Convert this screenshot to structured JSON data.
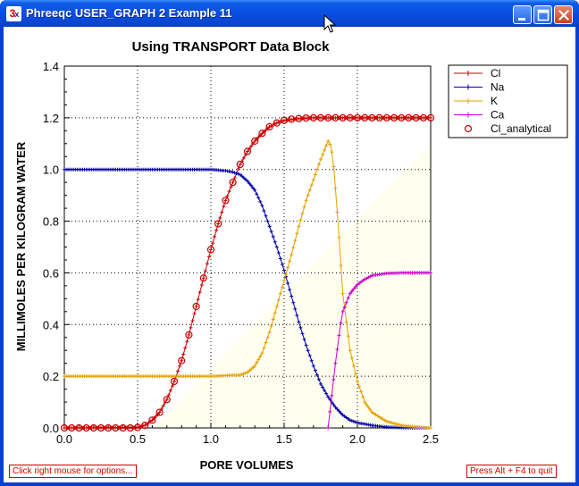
{
  "window": {
    "title": "Phreeqc USER_GRAPH 2 Example 11",
    "icon": "phreeqc-3x-icon",
    "icon_text": "3",
    "icon_suffix": "x",
    "controls": [
      "minimize-icon",
      "maximize-icon",
      "close-icon"
    ]
  },
  "status": {
    "left_hint": "Click right mouse for options...",
    "right_hint": "Press Alt + F4 to quit"
  },
  "colors": {
    "Cl": "#cc0000",
    "Na": "#0000aa",
    "K": "#e6a000",
    "Ca": "#cc00cc",
    "Cl_analytical": "#cc0000",
    "plot_background": "#fffff0"
  },
  "chart_data": {
    "type": "line",
    "title": "Using TRANSPORT Data Block",
    "xlabel": "PORE VOLUMES",
    "ylabel": "MILLIMOLES PER KILOGRAM WATER",
    "xlim": [
      0,
      2.5
    ],
    "ylim": [
      0,
      1.4
    ],
    "x_ticks": [
      "0.0",
      "0.5",
      "1.0",
      "1.5",
      "2.0",
      "2.5"
    ],
    "y_ticks": [
      "0.0",
      "0.2",
      "0.4",
      "0.6",
      "0.8",
      "1.0",
      "1.2",
      "1.4"
    ],
    "grid": true,
    "grid_style": "dotted",
    "legend_position": "right",
    "series": [
      {
        "name": "Cl",
        "style": "line-plus",
        "x": [
          0,
          0.5,
          0.55,
          0.6,
          0.65,
          0.7,
          0.75,
          0.8,
          0.85,
          0.9,
          0.95,
          1.0,
          1.05,
          1.1,
          1.15,
          1.2,
          1.25,
          1.3,
          1.35,
          1.4,
          1.45,
          1.5,
          1.6,
          1.7,
          1.8,
          1.9,
          2.0,
          2.25,
          2.5
        ],
        "values": [
          0,
          0.002,
          0.01,
          0.03,
          0.06,
          0.11,
          0.18,
          0.26,
          0.36,
          0.47,
          0.58,
          0.69,
          0.79,
          0.88,
          0.95,
          1.02,
          1.07,
          1.11,
          1.14,
          1.165,
          1.18,
          1.19,
          1.197,
          1.2,
          1.2,
          1.2,
          1.2,
          1.2,
          1.2
        ]
      },
      {
        "name": "Na",
        "style": "line-plus",
        "x": [
          0,
          0.5,
          1.0,
          1.1,
          1.15,
          1.2,
          1.25,
          1.3,
          1.35,
          1.4,
          1.45,
          1.5,
          1.55,
          1.6,
          1.65,
          1.7,
          1.75,
          1.8,
          1.85,
          1.9,
          1.95,
          2.0,
          2.1,
          2.2,
          2.3,
          2.5
        ],
        "values": [
          1.0,
          1.0,
          1.0,
          0.995,
          0.99,
          0.98,
          0.955,
          0.92,
          0.86,
          0.78,
          0.7,
          0.61,
          0.51,
          0.41,
          0.32,
          0.24,
          0.17,
          0.12,
          0.08,
          0.05,
          0.03,
          0.02,
          0.01,
          0.003,
          0.001,
          0
        ]
      },
      {
        "name": "K",
        "style": "line-plus",
        "x": [
          0,
          1.0,
          1.2,
          1.25,
          1.3,
          1.35,
          1.4,
          1.45,
          1.5,
          1.55,
          1.6,
          1.65,
          1.7,
          1.75,
          1.8,
          1.82,
          1.84,
          1.87,
          1.9,
          1.95,
          2.0,
          2.05,
          2.1,
          2.2,
          2.3,
          2.4,
          2.5
        ],
        "values": [
          0.2,
          0.2,
          0.205,
          0.215,
          0.24,
          0.29,
          0.37,
          0.47,
          0.57,
          0.67,
          0.78,
          0.88,
          0.96,
          1.04,
          1.11,
          1.09,
          1.0,
          0.78,
          0.52,
          0.3,
          0.18,
          0.1,
          0.06,
          0.025,
          0.01,
          0.003,
          0
        ]
      },
      {
        "name": "Ca",
        "style": "line-plus",
        "x": [
          1.8,
          1.82,
          1.85,
          1.88,
          1.9,
          1.95,
          2.0,
          2.05,
          2.1,
          2.2,
          2.3,
          2.4,
          2.5
        ],
        "values": [
          0,
          0.1,
          0.25,
          0.38,
          0.45,
          0.52,
          0.555,
          0.575,
          0.59,
          0.598,
          0.6,
          0.6,
          0.6
        ]
      },
      {
        "name": "Cl_analytical",
        "style": "open-circle",
        "x": [
          0,
          0.05,
          0.1,
          0.15,
          0.2,
          0.25,
          0.3,
          0.35,
          0.4,
          0.45,
          0.5,
          0.55,
          0.6,
          0.65,
          0.7,
          0.75,
          0.8,
          0.85,
          0.9,
          0.95,
          1.0,
          1.05,
          1.1,
          1.15,
          1.2,
          1.25,
          1.3,
          1.35,
          1.4,
          1.45,
          1.5,
          1.55,
          1.6,
          1.65,
          1.7,
          1.75,
          1.8,
          1.85,
          1.9,
          1.95,
          2.0,
          2.05,
          2.1,
          2.15,
          2.2,
          2.25,
          2.3,
          2.35,
          2.4,
          2.45,
          2.5
        ],
        "values": [
          0,
          0,
          0,
          0,
          0,
          0,
          0,
          0,
          0,
          0,
          0.002,
          0.01,
          0.03,
          0.06,
          0.11,
          0.18,
          0.26,
          0.36,
          0.47,
          0.58,
          0.69,
          0.79,
          0.88,
          0.95,
          1.02,
          1.07,
          1.11,
          1.14,
          1.165,
          1.18,
          1.19,
          1.195,
          1.197,
          1.199,
          1.2,
          1.2,
          1.2,
          1.2,
          1.2,
          1.2,
          1.2,
          1.2,
          1.2,
          1.2,
          1.2,
          1.2,
          1.2,
          1.2,
          1.2,
          1.2,
          1.2
        ]
      }
    ]
  }
}
